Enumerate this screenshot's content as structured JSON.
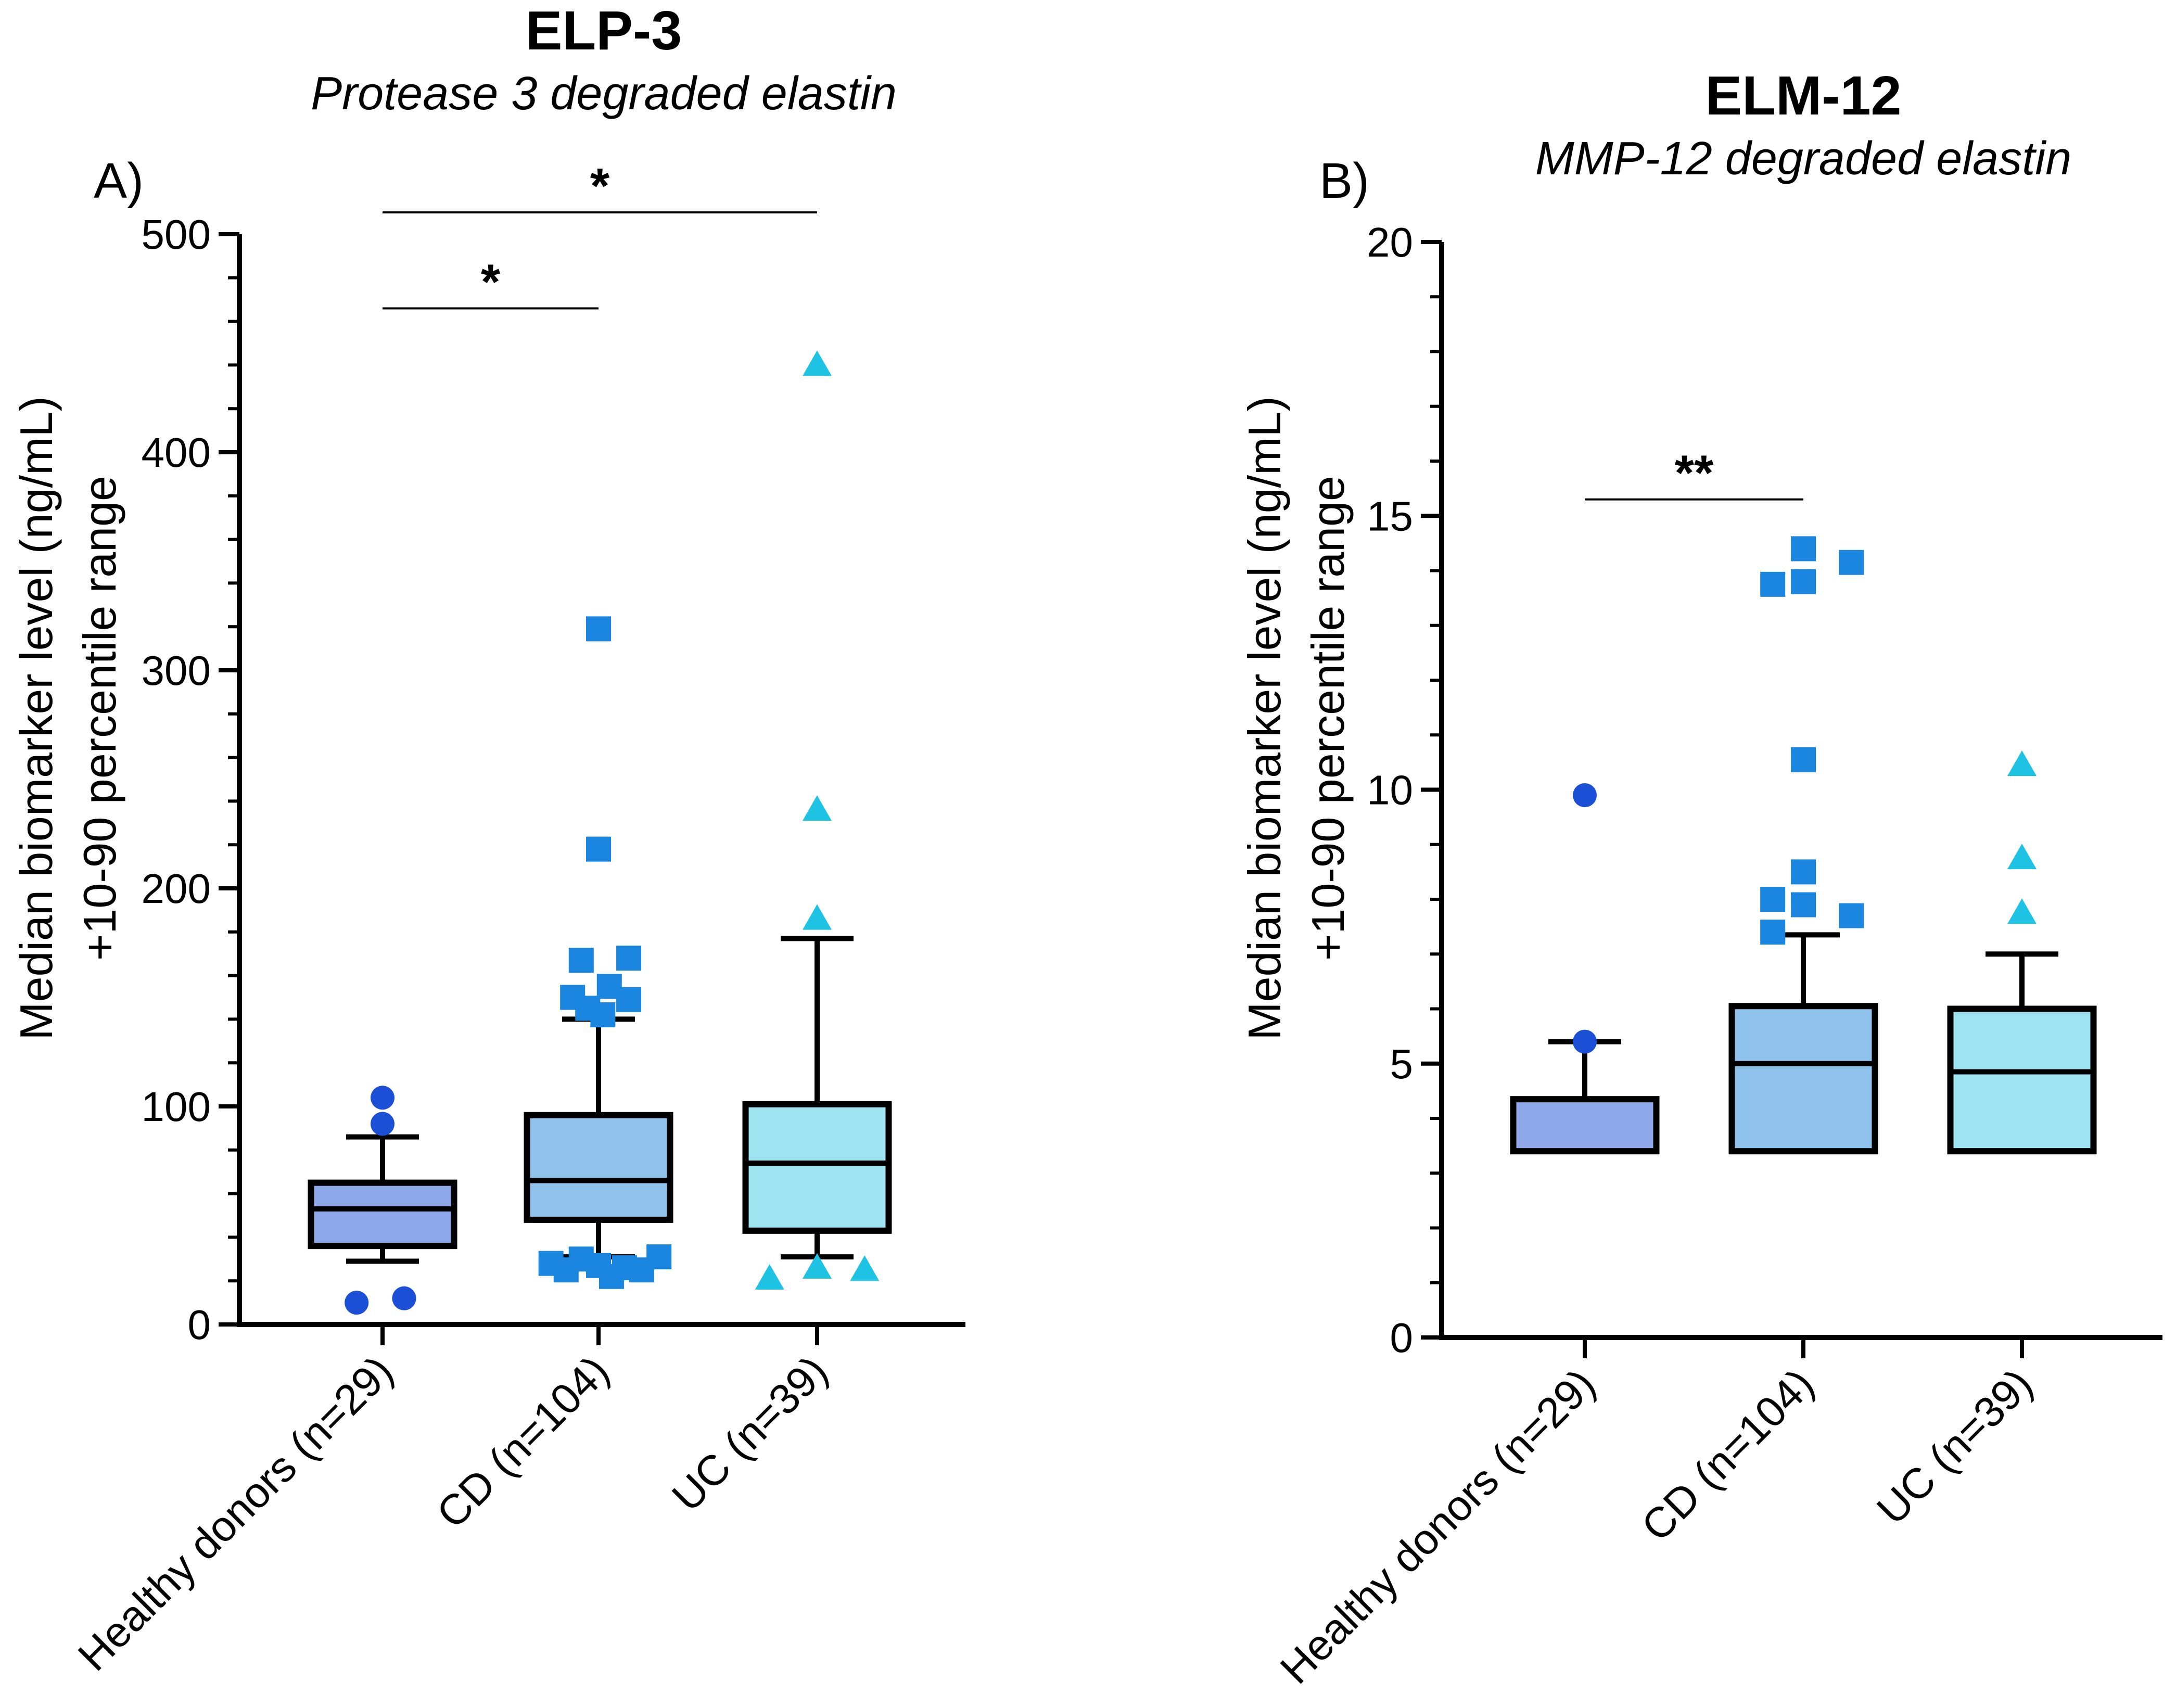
{
  "chart_data": [
    {
      "type": "box",
      "panel_label": "A)",
      "title": "ELP-3",
      "subtitle": "Protease 3 degraded elastin",
      "ylabel_line1": "Median biomarker level  (ng/mL)",
      "ylabel_line2": "+10-90 percentile range",
      "ylim": [
        0,
        500
      ],
      "yticks": [
        0,
        100,
        200,
        300,
        400,
        500
      ],
      "categories": [
        "Healthy donors (n=29)",
        "CD (n=104)",
        "UC (n=39)"
      ],
      "boxes": [
        {
          "name": "Healthy donors (n=29)",
          "color": "#8fa8ea",
          "marker": "circle",
          "marker_color": "#1a4fd6",
          "whisker_low": 29,
          "q1": 36,
          "median": 53,
          "q3": 65,
          "whisker_high": 86,
          "outliers": [
            [
              -0.12,
              10
            ],
            [
              0.1,
              12
            ],
            [
              0,
              92
            ],
            [
              0,
              104
            ]
          ]
        },
        {
          "name": "CD (n=104)",
          "color": "#8fc3ee",
          "marker": "square",
          "marker_color": "#1a86df",
          "whisker_low": 31,
          "q1": 48,
          "median": 66,
          "q3": 96,
          "whisker_high": 140,
          "outliers": [
            [
              -0.22,
              28
            ],
            [
              -0.15,
              25
            ],
            [
              -0.08,
              30
            ],
            [
              0,
              27
            ],
            [
              0.06,
              22
            ],
            [
              0.12,
              26
            ],
            [
              0.2,
              25
            ],
            [
              0.28,
              31
            ],
            [
              -0.12,
              150
            ],
            [
              0.05,
              155
            ],
            [
              0.14,
              168
            ],
            [
              -0.08,
              167
            ],
            [
              -0.05,
              145
            ],
            [
              0.02,
              142
            ],
            [
              0.14,
              149
            ],
            [
              0,
              218
            ],
            [
              0,
              319
            ]
          ]
        },
        {
          "name": "UC (n=39)",
          "color": "#9ee3f0",
          "marker": "triangle",
          "marker_color": "#1ec3e3",
          "whisker_low": 31,
          "q1": 43,
          "median": 74,
          "q3": 101,
          "whisker_high": 177,
          "outliers": [
            [
              -0.22,
              21
            ],
            [
              0,
              26
            ],
            [
              0.22,
              25
            ],
            [
              0,
              186
            ],
            [
              0,
              236
            ],
            [
              0,
              440
            ]
          ]
        }
      ],
      "significance": [
        {
          "from": 0,
          "to": 1,
          "y": 466,
          "label": "*"
        },
        {
          "from": 0,
          "to": 2,
          "y": 510,
          "label": "*"
        }
      ]
    },
    {
      "type": "box",
      "panel_label": "B)",
      "title": "ELM-12",
      "subtitle": "MMP-12 degraded elastin",
      "ylabel_line1": "Median biomarker level  (ng/mL)",
      "ylabel_line2": "+10-90 percentile range",
      "ylim": [
        0,
        20
      ],
      "yticks": [
        0,
        5,
        10,
        15,
        20
      ],
      "categories": [
        "Healthy donors (n=29)",
        "CD (n=104)",
        "UC (n=39)"
      ],
      "boxes": [
        {
          "name": "Healthy donors (n=29)",
          "color": "#8fa8ea",
          "marker": "circle",
          "marker_color": "#1a4fd6",
          "whisker_low": 3.4,
          "q1": 3.4,
          "median": 3.4,
          "q3": 4.35,
          "whisker_high": 5.4,
          "outliers": [
            [
              0,
              5.4
            ],
            [
              0,
              9.9
            ]
          ]
        },
        {
          "name": "CD (n=104)",
          "color": "#8fc3ee",
          "marker": "square",
          "marker_color": "#1a86df",
          "whisker_low": 3.4,
          "q1": 3.4,
          "median": 5.0,
          "q3": 6.05,
          "whisker_high": 7.35,
          "outliers": [
            [
              -0.14,
              7.4
            ],
            [
              -0.14,
              8.0
            ],
            [
              0,
              7.9
            ],
            [
              0,
              8.5
            ],
            [
              0.22,
              7.7
            ],
            [
              0,
              10.55
            ],
            [
              -0.14,
              13.75
            ],
            [
              0,
              13.8
            ],
            [
              0.22,
              14.15
            ],
            [
              0,
              14.4
            ]
          ]
        },
        {
          "name": "UC (n=39)",
          "color": "#9ee3f0",
          "marker": "triangle",
          "marker_color": "#1ec3e3",
          "whisker_low": 3.4,
          "q1": 3.4,
          "median": 4.85,
          "q3": 6.0,
          "whisker_high": 7.0,
          "outliers": [
            [
              0,
              7.75
            ],
            [
              0,
              8.75
            ],
            [
              0,
              10.45
            ]
          ]
        }
      ],
      "significance": [
        {
          "from": 0,
          "to": 1,
          "y": 15.3,
          "label": "**"
        }
      ]
    }
  ]
}
